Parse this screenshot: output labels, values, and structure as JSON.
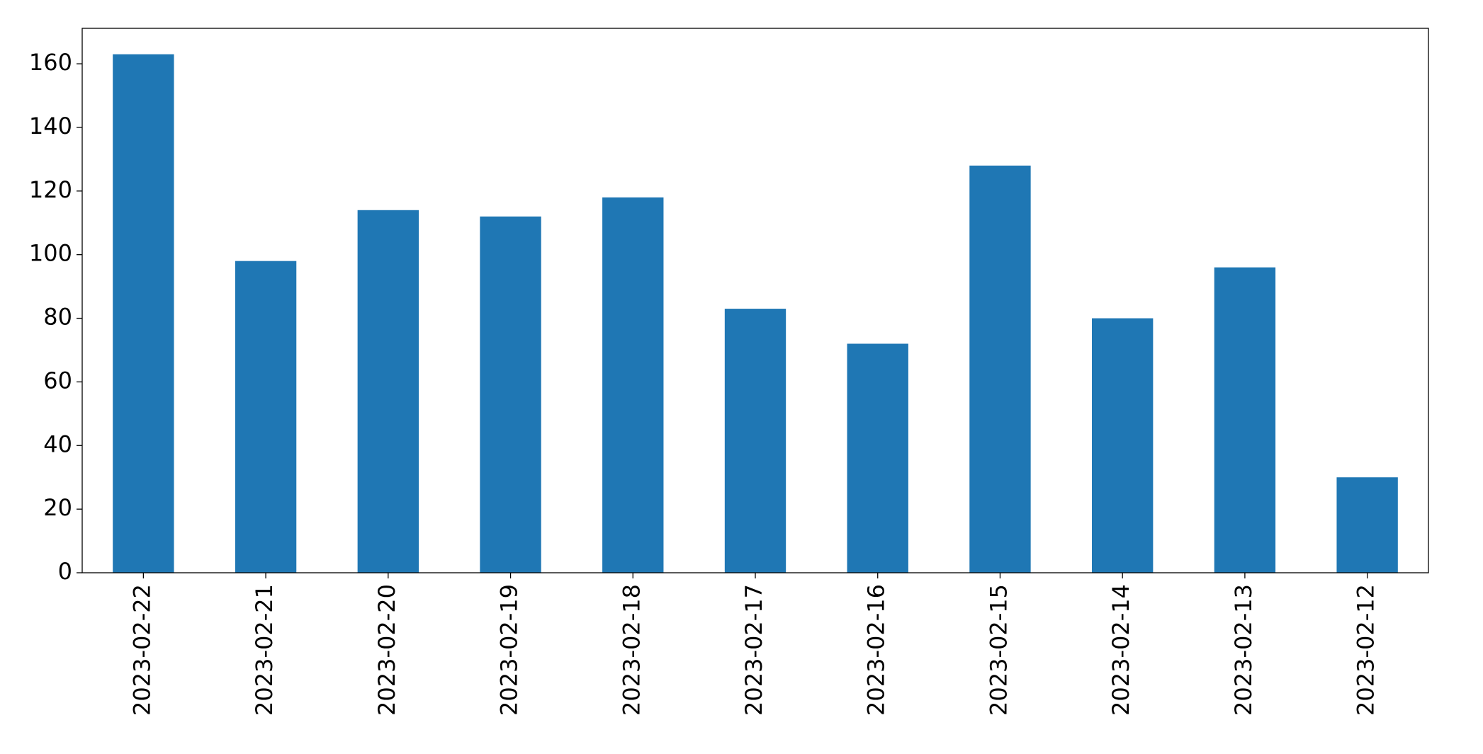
{
  "chart_data": {
    "type": "bar",
    "categories": [
      "2023-02-22",
      "2023-02-21",
      "2023-02-20",
      "2023-02-19",
      "2023-02-18",
      "2023-02-17",
      "2023-02-16",
      "2023-02-15",
      "2023-02-14",
      "2023-02-13",
      "2023-02-12"
    ],
    "values": [
      163,
      98,
      114,
      112,
      118,
      83,
      72,
      128,
      80,
      96,
      30
    ],
    "color": "#1f77b4",
    "ylim": [
      0,
      171.15
    ],
    "yticks": [
      0,
      20,
      40,
      60,
      80,
      100,
      120,
      140,
      160
    ],
    "grid": false
  }
}
